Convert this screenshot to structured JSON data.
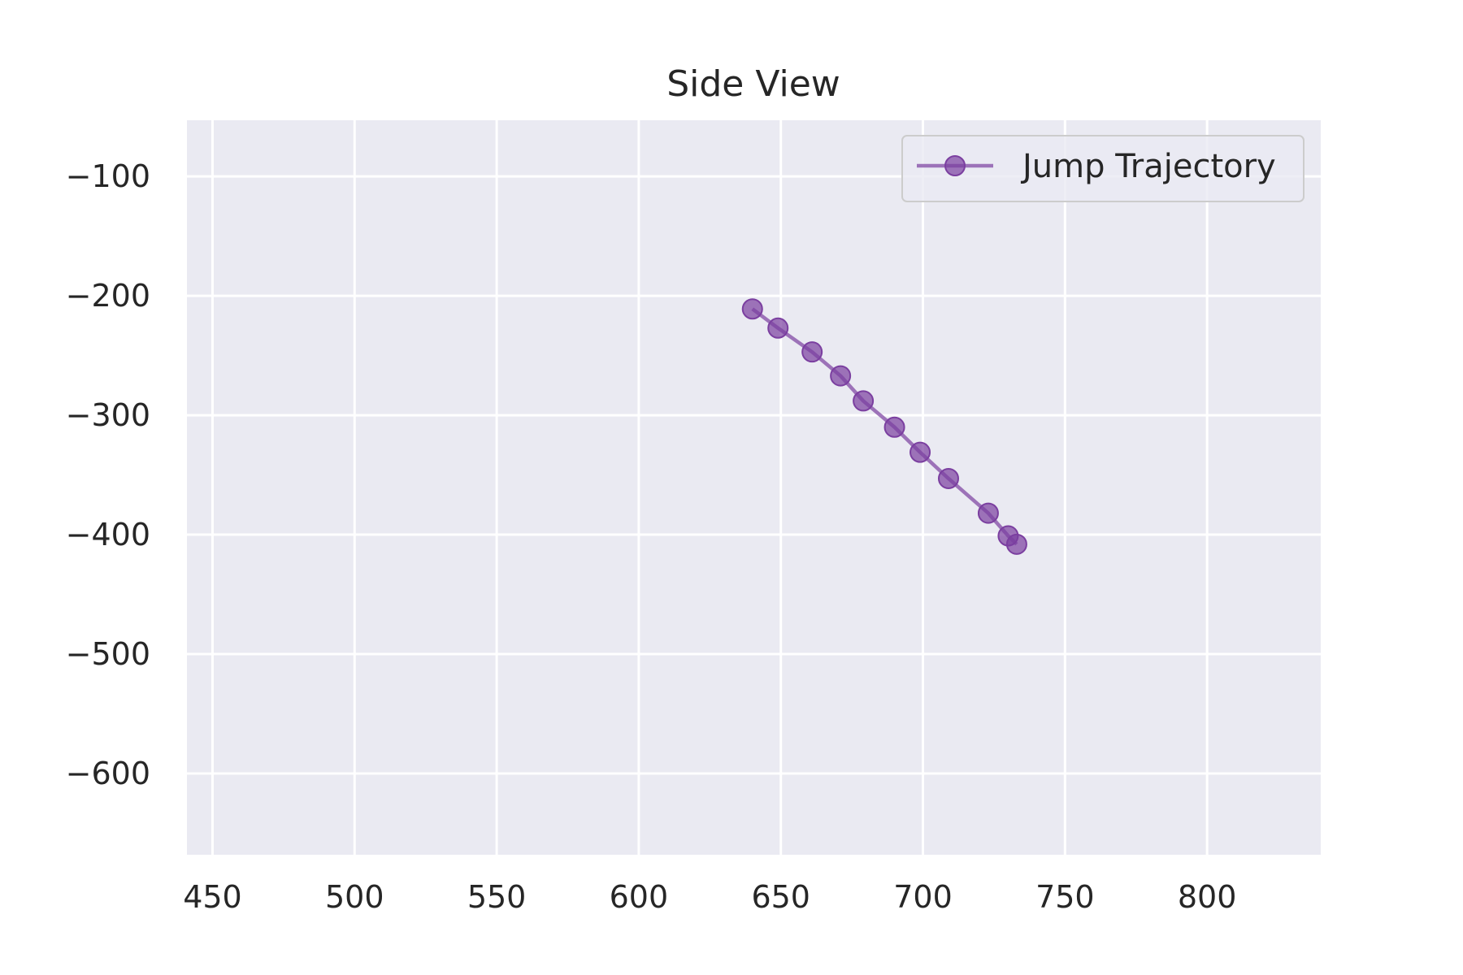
{
  "chart_data": {
    "type": "line",
    "title": "Side View",
    "xlabel": "",
    "ylabel": "",
    "xlim": [
      441,
      840
    ],
    "ylim": [
      -668,
      -53
    ],
    "xticks": [
      450,
      500,
      550,
      600,
      650,
      700,
      750,
      800
    ],
    "yticks": [
      -100,
      -200,
      -300,
      -400,
      -500,
      -600
    ],
    "xtick_labels": [
      "450",
      "500",
      "550",
      "600",
      "650",
      "700",
      "750",
      "800"
    ],
    "ytick_labels": [
      "−100",
      "−200",
      "−300",
      "−400",
      "−500",
      "−600"
    ],
    "grid": true,
    "legend_position": "upper right",
    "series": [
      {
        "name": "Jump Trajectory",
        "color": "#7b3fa0",
        "marker": "circle",
        "alpha": 0.7,
        "x": [
          640,
          649,
          661,
          671,
          679,
          690,
          699,
          709,
          723,
          730,
          733
        ],
        "y": [
          -211,
          -227,
          -247,
          -267,
          -288,
          -310,
          -331,
          -353,
          -382,
          -401,
          -408
        ]
      }
    ],
    "background": "#eaeaf2",
    "grid_color": "#ffffff"
  }
}
